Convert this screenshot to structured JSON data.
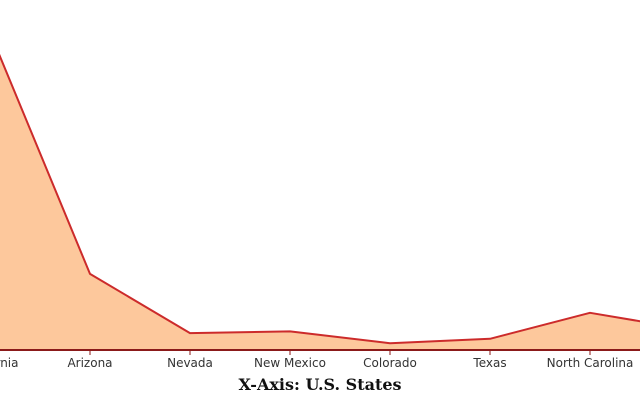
{
  "chart_data": {
    "type": "area",
    "categories": [
      "California",
      "Arizona",
      "Nevada",
      "New Mexico",
      "Colorado",
      "Texas",
      "North Carolina",
      ""
    ],
    "values": [
      94,
      22.5,
      5,
      5.5,
      2,
      3.3,
      11,
      6
    ],
    "xlabel": "X-Axis: U.S. States",
    "ylabel": "",
    "ylim": [
      0,
      100
    ],
    "grid": false,
    "colors": {
      "fill": "#fdc89c",
      "line": "#cc2b2b",
      "axis": "#8b1a1a"
    }
  }
}
